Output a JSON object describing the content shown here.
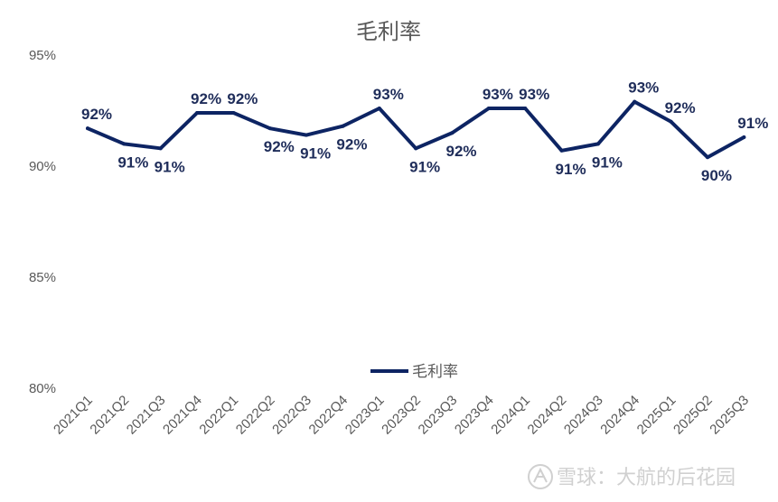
{
  "chart_data": {
    "type": "line",
    "title": "毛利率",
    "xlabel": "",
    "ylabel": "",
    "ylim": [
      80,
      95
    ],
    "yticks": [
      "80%",
      "85%",
      "90%",
      "95%"
    ],
    "categories": [
      "2021Q1",
      "2021Q2",
      "2021Q3",
      "2021Q4",
      "2022Q1",
      "2022Q2",
      "2022Q3",
      "2022Q4",
      "2023Q1",
      "2023Q2",
      "2023Q3",
      "2023Q4",
      "2024Q1",
      "2024Q2",
      "2024Q3",
      "2024Q4",
      "2025Q1",
      "2025Q2",
      "2025Q3"
    ],
    "series": [
      {
        "name": "毛利率",
        "color": "#0d2463",
        "values": [
          91.7,
          91.0,
          90.8,
          92.4,
          92.4,
          91.7,
          91.4,
          91.8,
          92.6,
          90.8,
          91.5,
          92.6,
          92.6,
          90.7,
          91.0,
          92.9,
          92.0,
          90.4,
          91.3
        ],
        "labels": [
          "92%",
          "91%",
          "91%",
          "92%",
          "92%",
          "92%",
          "91%",
          "92%",
          "93%",
          "91%",
          "92%",
          "93%",
          "93%",
          "91%",
          "91%",
          "93%",
          "92%",
          "90%",
          "91%"
        ]
      }
    ],
    "legend": "bottom",
    "grid": false
  },
  "watermark": {
    "text": "雪球：大航的后花园",
    "icon": "xueqiu-logo-icon"
  }
}
